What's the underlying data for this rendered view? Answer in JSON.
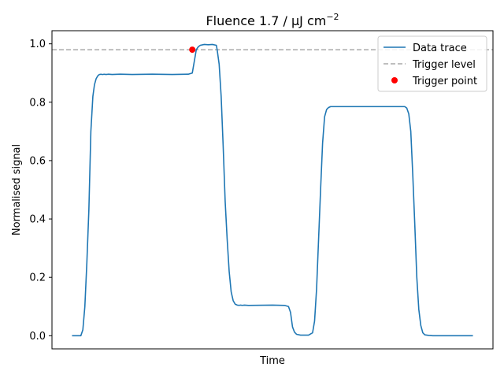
{
  "chart_data": {
    "type": "line",
    "title": "Fluence 1.7 / μJ cm",
    "title_superscript": "−2",
    "xlabel": "Time",
    "ylabel": "Normalised signal",
    "xlim": [
      -0.05,
      1.05
    ],
    "ylim": [
      -0.045,
      1.045
    ],
    "y_ticks": [
      0.0,
      0.2,
      0.4,
      0.6,
      0.8,
      1.0
    ],
    "y_tick_labels": [
      "0.0",
      "0.2",
      "0.4",
      "0.6",
      "0.8",
      "1.0"
    ],
    "x_ticks_shown": false,
    "grid": false,
    "legend_position": "top-right",
    "series": [
      {
        "name": "Data trace",
        "style": "solid",
        "color": "#1f77b4",
        "x": [
          0.0,
          0.022,
          0.027,
          0.032,
          0.037,
          0.042,
          0.047,
          0.052,
          0.056,
          0.06,
          0.064,
          0.068,
          0.072,
          0.076,
          0.08,
          0.085,
          0.09,
          0.1,
          0.12,
          0.15,
          0.2,
          0.25,
          0.29,
          0.3,
          0.305,
          0.31,
          0.315,
          0.32,
          0.33,
          0.34,
          0.35,
          0.36,
          0.362,
          0.367,
          0.372,
          0.377,
          0.382,
          0.387,
          0.392,
          0.397,
          0.402,
          0.407,
          0.412,
          0.417,
          0.42,
          0.425,
          0.43,
          0.44,
          0.5,
          0.53,
          0.54,
          0.545,
          0.55,
          0.555,
          0.56,
          0.57,
          0.58,
          0.59,
          0.6,
          0.605,
          0.61,
          0.615,
          0.62,
          0.625,
          0.63,
          0.635,
          0.64,
          0.645,
          0.65,
          0.66,
          0.7,
          0.8,
          0.83,
          0.835,
          0.84,
          0.845,
          0.85,
          0.855,
          0.86,
          0.865,
          0.87,
          0.875,
          0.88,
          0.89,
          0.9,
          0.95,
          1.0
        ],
        "y": [
          0.0,
          0.0,
          0.02,
          0.1,
          0.25,
          0.43,
          0.7,
          0.82,
          0.86,
          0.88,
          0.89,
          0.895,
          0.896,
          0.895,
          0.896,
          0.895,
          0.896,
          0.895,
          0.896,
          0.895,
          0.896,
          0.895,
          0.896,
          0.9,
          0.94,
          0.98,
          0.99,
          0.995,
          0.998,
          0.997,
          0.998,
          0.995,
          0.98,
          0.93,
          0.82,
          0.65,
          0.46,
          0.33,
          0.22,
          0.15,
          0.12,
          0.108,
          0.105,
          0.104,
          0.105,
          0.104,
          0.105,
          0.104,
          0.105,
          0.104,
          0.1,
          0.08,
          0.03,
          0.012,
          0.005,
          0.002,
          0.002,
          0.002,
          0.01,
          0.05,
          0.16,
          0.33,
          0.5,
          0.66,
          0.75,
          0.775,
          0.782,
          0.785,
          0.785,
          0.785,
          0.785,
          0.785,
          0.785,
          0.78,
          0.76,
          0.7,
          0.55,
          0.38,
          0.2,
          0.09,
          0.035,
          0.01,
          0.003,
          0.001,
          0.0,
          0.0,
          0.0
        ]
      },
      {
        "name": "Trigger level",
        "style": "dashed",
        "color": "#aaaaaa",
        "y_value": 0.98
      },
      {
        "name": "Trigger point",
        "style": "marker",
        "color": "#ff0000",
        "x": [
          0.3
        ],
        "y": [
          0.98
        ]
      }
    ]
  }
}
